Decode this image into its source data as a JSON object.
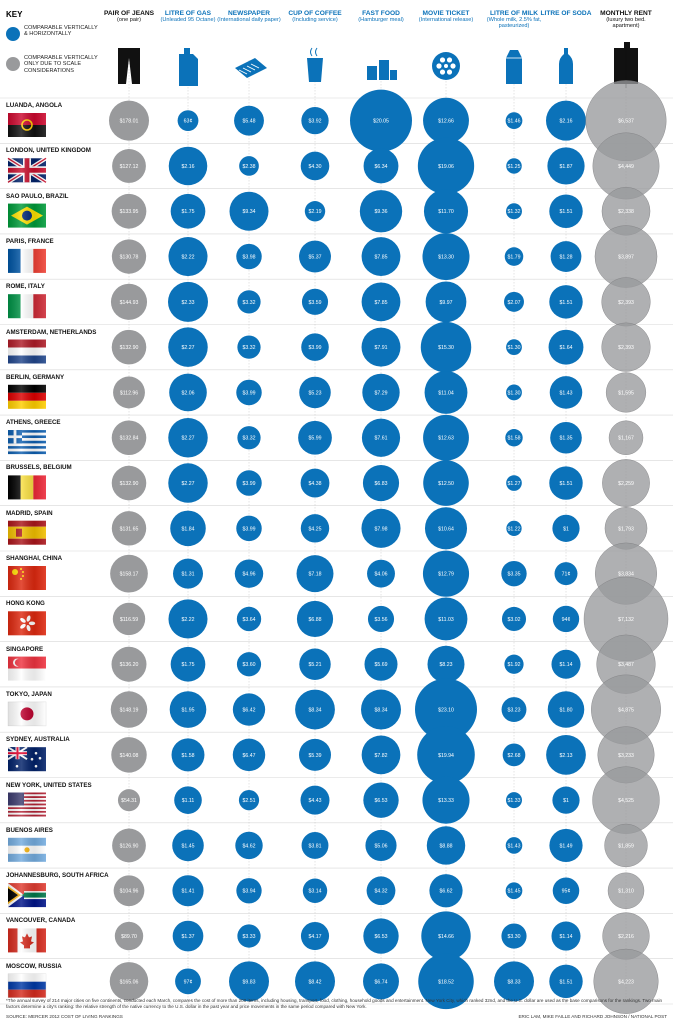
{
  "key": {
    "title": "KEY",
    "blue_label": "COMPARABLE VERTICALLY & HORIZONTALLY",
    "grey_label": "COMPARABLE VERTICALLY ONLY DUE TO SCALE CONSIDERATIONS"
  },
  "colors": {
    "blue": "#0b72b9",
    "grey": "#999a9c",
    "blue_text": "#0b72b9",
    "grid": "#c8c8c8"
  },
  "columns": [
    {
      "title": "PAIR OF JEANS",
      "sub": "(one pair)",
      "icon": "jeans-icon",
      "color": "grey"
    },
    {
      "title": "LITRE OF GAS",
      "sub": "(Unleaded 95 Octane)",
      "icon": "gas-can-icon",
      "color": "blue"
    },
    {
      "title": "NEWSPAPER",
      "sub": "(International daily paper)",
      "icon": "newspaper-icon",
      "color": "blue"
    },
    {
      "title": "CUP OF COFFEE",
      "sub": "(Including service)",
      "icon": "coffee-cup-icon",
      "color": "blue"
    },
    {
      "title": "FAST FOOD",
      "sub": "(Hamburger meal)",
      "icon": "fast-food-icon",
      "color": "blue"
    },
    {
      "title": "MOVIE TICKET",
      "sub": "(International release)",
      "icon": "film-reel-icon",
      "color": "blue"
    },
    {
      "title": "LITRE OF MILK",
      "sub": "(Whole milk, 2.5% fat, pasteurized)",
      "icon": "milk-carton-icon",
      "color": "blue"
    },
    {
      "title": "LITRE OF SODA",
      "sub": "",
      "icon": "soda-bottle-icon",
      "color": "blue"
    },
    {
      "title": "MONTHLY RENT",
      "sub": "(luxury two bed. apartment)",
      "icon": "building-icon",
      "color": "grey"
    }
  ],
  "chart_data": {
    "type": "proportional-circle-table",
    "categories": [
      "LUANDA, ANGOLA",
      "LONDON, UNITED KINGDOM",
      "SAO PAULO, BRAZIL",
      "PARIS, FRANCE",
      "ROME, ITALY",
      "AMSTERDAM, NETHERLANDS",
      "BERLIN, GERMANY",
      "ATHENS, GREECE",
      "BRUSSELS, BELGIUM",
      "MADRID, SPAIN",
      "SHANGHAI, CHINA",
      "HONG KONG",
      "SINGAPORE",
      "TOKYO, JAPAN",
      "SYDNEY, AUSTRALIA",
      "NEW YORK, UNITED STATES",
      "BUENOS AIRES",
      "JOHANNESBURG, SOUTH AFRICA",
      "VANCOUVER, CANADA",
      "MOSCOW, RUSSIA"
    ],
    "flags": [
      "angola",
      "uk",
      "brazil",
      "france",
      "italy",
      "netherlands",
      "germany",
      "greece",
      "belgium",
      "spain",
      "china",
      "hongkong",
      "singapore",
      "japan",
      "australia",
      "usa",
      "argentina",
      "southafrica",
      "canada",
      "russia"
    ],
    "series": [
      {
        "name": "PAIR OF JEANS",
        "values": [
          178.01,
          127.12,
          133.95,
          130.78,
          144.93,
          132.9,
          112.96,
          132.84,
          132.9,
          131.65,
          158.17,
          116.59,
          136.2,
          148.19,
          140.08,
          54.31,
          126.9,
          104.96,
          89.7,
          165.06
        ],
        "labels": [
          "$178.01",
          "$127.12",
          "$133.95",
          "$130.78",
          "$144.93",
          "$132.90",
          "$112.96",
          "$132.84",
          "$132.90",
          "$131.65",
          "$158.17",
          "$116.59",
          "$136.20",
          "$148.19",
          "$140.08",
          "$54.31",
          "$126.90",
          "$104.96",
          "$89.70",
          "$165.06"
        ]
      },
      {
        "name": "LITRE OF GAS",
        "values": [
          0.63,
          2.16,
          1.75,
          2.22,
          2.33,
          2.27,
          2.06,
          2.27,
          2.27,
          1.84,
          1.31,
          2.22,
          1.75,
          1.95,
          1.58,
          1.11,
          1.45,
          1.41,
          1.37,
          0.97
        ],
        "labels": [
          "63¢",
          "$2.16",
          "$1.75",
          "$2.22",
          "$2.33",
          "$2.27",
          "$2.06",
          "$2.27",
          "$2.27",
          "$1.84",
          "$1.31",
          "$2.22",
          "$1.75",
          "$1.95",
          "$1.58",
          "$1.11",
          "$1.45",
          "$1.41",
          "$1.37",
          "97¢"
        ]
      },
      {
        "name": "NEWSPAPER",
        "values": [
          5.48,
          2.38,
          9.34,
          3.98,
          3.32,
          3.32,
          3.99,
          3.32,
          3.99,
          3.99,
          4.96,
          3.64,
          3.6,
          6.42,
          6.47,
          2.51,
          4.62,
          3.94,
          3.33,
          9.83
        ],
        "labels": [
          "$5.48",
          "$2.38",
          "$9.34",
          "$3.98",
          "$3.32",
          "$3.32",
          "$3.99",
          "$3.32",
          "$3.99",
          "$3.99",
          "$4.96",
          "$3.64",
          "$3.60",
          "$6.42",
          "$6.47",
          "$2.51",
          "$4.62",
          "$3.94",
          "$3.33",
          "$9.83"
        ]
      },
      {
        "name": "CUP OF COFFEE",
        "values": [
          3.92,
          4.3,
          2.19,
          5.37,
          3.59,
          3.99,
          5.23,
          5.99,
          4.38,
          4.25,
          7.18,
          6.88,
          5.21,
          8.34,
          5.39,
          4.43,
          3.81,
          3.14,
          4.17,
          8.42
        ],
        "labels": [
          "$3.92",
          "$4.30",
          "$2.19",
          "$5.37",
          "$3.59",
          "$3.99",
          "$5.23",
          "$5.99",
          "$4.38",
          "$4.25",
          "$7.18",
          "$6.88",
          "$5.21",
          "$8.34",
          "$5.39",
          "$4.43",
          "$3.81",
          "$3.14",
          "$4.17",
          "$8.42"
        ]
      },
      {
        "name": "FAST FOOD",
        "values": [
          20.05,
          6.34,
          9.36,
          7.85,
          7.85,
          7.91,
          7.29,
          7.61,
          6.83,
          7.98,
          4.06,
          3.56,
          5.69,
          8.34,
          7.82,
          6.53,
          5.06,
          4.32,
          6.53,
          6.74
        ],
        "labels": [
          "$20.05",
          "$6.34",
          "$9.36",
          "$7.85",
          "$7.85",
          "$7.91",
          "$7.29",
          "$7.61",
          "$6.83",
          "$7.98",
          "$4.06",
          "$3.56",
          "$5.69",
          "$8.34",
          "$7.82",
          "$6.53",
          "$5.06",
          "$4.32",
          "$6.53",
          "$6.74"
        ]
      },
      {
        "name": "MOVIE TICKET",
        "values": [
          12.66,
          19.06,
          11.7,
          13.3,
          9.97,
          15.3,
          11.04,
          12.63,
          12.5,
          10.64,
          12.79,
          11.03,
          8.23,
          23.1,
          19.94,
          13.33,
          8.88,
          6.62,
          14.66,
          18.52
        ],
        "labels": [
          "$12.66",
          "$19.06",
          "$11.70",
          "$13.30",
          "$9.97",
          "$15.30",
          "$11.04",
          "$12.63",
          "$12.50",
          "$10.64",
          "$12.79",
          "$11.03",
          "$8.23",
          "$23.10",
          "$19.94",
          "$13.33",
          "$8.88",
          "$6.62",
          "$14.66",
          "$18.52"
        ]
      },
      {
        "name": "LITRE OF MILK",
        "values": [
          1.46,
          1.25,
          1.32,
          1.79,
          2.07,
          1.3,
          1.3,
          1.58,
          1.27,
          1.22,
          3.35,
          3.02,
          1.92,
          3.23,
          2.68,
          1.33,
          1.43,
          1.45,
          3.3,
          8.33
        ],
        "labels": [
          "$1.46",
          "$1.25",
          "$1.32",
          "$1.79",
          "$2.07",
          "$1.30",
          "$1.30",
          "$1.58",
          "$1.27",
          "$1.22",
          "$3.35",
          "$3.02",
          "$1.92",
          "$3.23",
          "$2.68",
          "$1.33",
          "$1.43",
          "$1.45",
          "$3.30",
          "$8.33"
        ]
      },
      {
        "name": "LITRE OF SODA",
        "values": [
          2.16,
          1.87,
          1.51,
          1.28,
          1.51,
          1.64,
          1.43,
          1.35,
          1.51,
          1.0,
          0.71,
          0.94,
          1.14,
          1.8,
          2.13,
          1.0,
          1.49,
          0.95,
          1.14,
          1.51
        ],
        "labels": [
          "$2.16",
          "$1.87",
          "$1.51",
          "$1.28",
          "$1.51",
          "$1.64",
          "$1.43",
          "$1.35",
          "$1.51",
          "$1",
          "71¢",
          "94¢",
          "$1.14",
          "$1.80",
          "$2.13",
          "$1",
          "$1.49",
          "95¢",
          "$1.14",
          "$1.51"
        ]
      },
      {
        "name": "MONTHLY RENT",
        "values": [
          6537,
          4449,
          2338,
          3897,
          2393,
          2393,
          1595,
          1167,
          2259,
          1793,
          3834,
          7132,
          3487,
          4875,
          3233,
          4525,
          1859,
          1310,
          2216,
          4223
        ],
        "labels": [
          "$6,537",
          "$4,449",
          "$2,338",
          "$3,897",
          "$2,393",
          "$2,393",
          "$1,595",
          "$1,167",
          "$2,259",
          "$1,793",
          "$3,834",
          "$7,132",
          "$3,487",
          "$4,875",
          "$3,233",
          "$4,525",
          "$1,859",
          "$1,310",
          "$2,216",
          "$4,223"
        ]
      }
    ]
  },
  "footnote": "*The annual survey of 214 major cities on five continents, conducted each March, compares the cost of more than 200 items, including housing, transport, food, clothing, household goods and entertainment. New York City, which ranked 32nd, and the U.S. dollar are used as the base comparisons for the rankings. Two main factors determine a city's ranking: the relative strength of the native currency to the U.S. dollar in the past year and price movements in the same period compared with New York.",
  "source": "SOURCE: MERCER 2012 COST OF LIVING RANKINGS",
  "credit": "ERIC LAM, MIKE FAILLE AND RICHARD JOHNSON / NATIONAL POST"
}
